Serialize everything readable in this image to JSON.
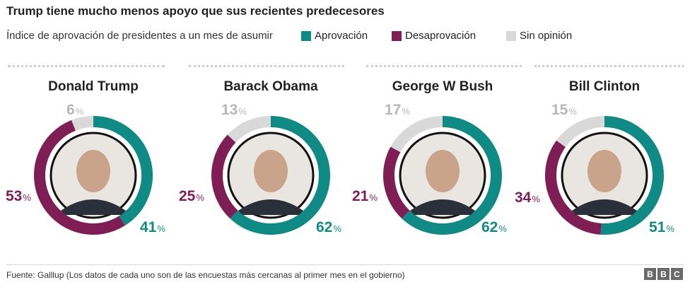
{
  "title": "Trump tiene mucho menos apoyo que sus recientes predecesores",
  "subtitle": "Índice de aprovación de presidentes a un mes de asumir",
  "legend": [
    {
      "label": "Aprovación",
      "color": "#0f8a84"
    },
    {
      "label": "Desaprovación",
      "color": "#7f1d55"
    },
    {
      "label": "Sin opinión",
      "color": "#d9d9d9"
    }
  ],
  "unit": "%",
  "chart_data": {
    "type": "pie",
    "series_names": [
      "Aprovación",
      "Desaprovación",
      "Sin opinión"
    ],
    "colors": {
      "approve": "#0f8a84",
      "disapprove": "#7f1d55",
      "noopinion": "#d9d9d9"
    },
    "presidents": [
      {
        "name": "Donald Trump",
        "approve": 41,
        "disapprove": 53,
        "noopinion": 6
      },
      {
        "name": "Barack Obama",
        "approve": 62,
        "disapprove": 25,
        "noopinion": 13
      },
      {
        "name": "George W Bush",
        "approve": 62,
        "disapprove": 21,
        "noopinion": 17
      },
      {
        "name": "Bill Clinton",
        "approve": 51,
        "disapprove": 34,
        "noopinion": 15
      }
    ]
  },
  "source": "Fuente: Galllup (Los datos de cada uno son de las encuestas más cercanas al primer mes en el gobierno)",
  "brand": [
    "B",
    "B",
    "C"
  ]
}
